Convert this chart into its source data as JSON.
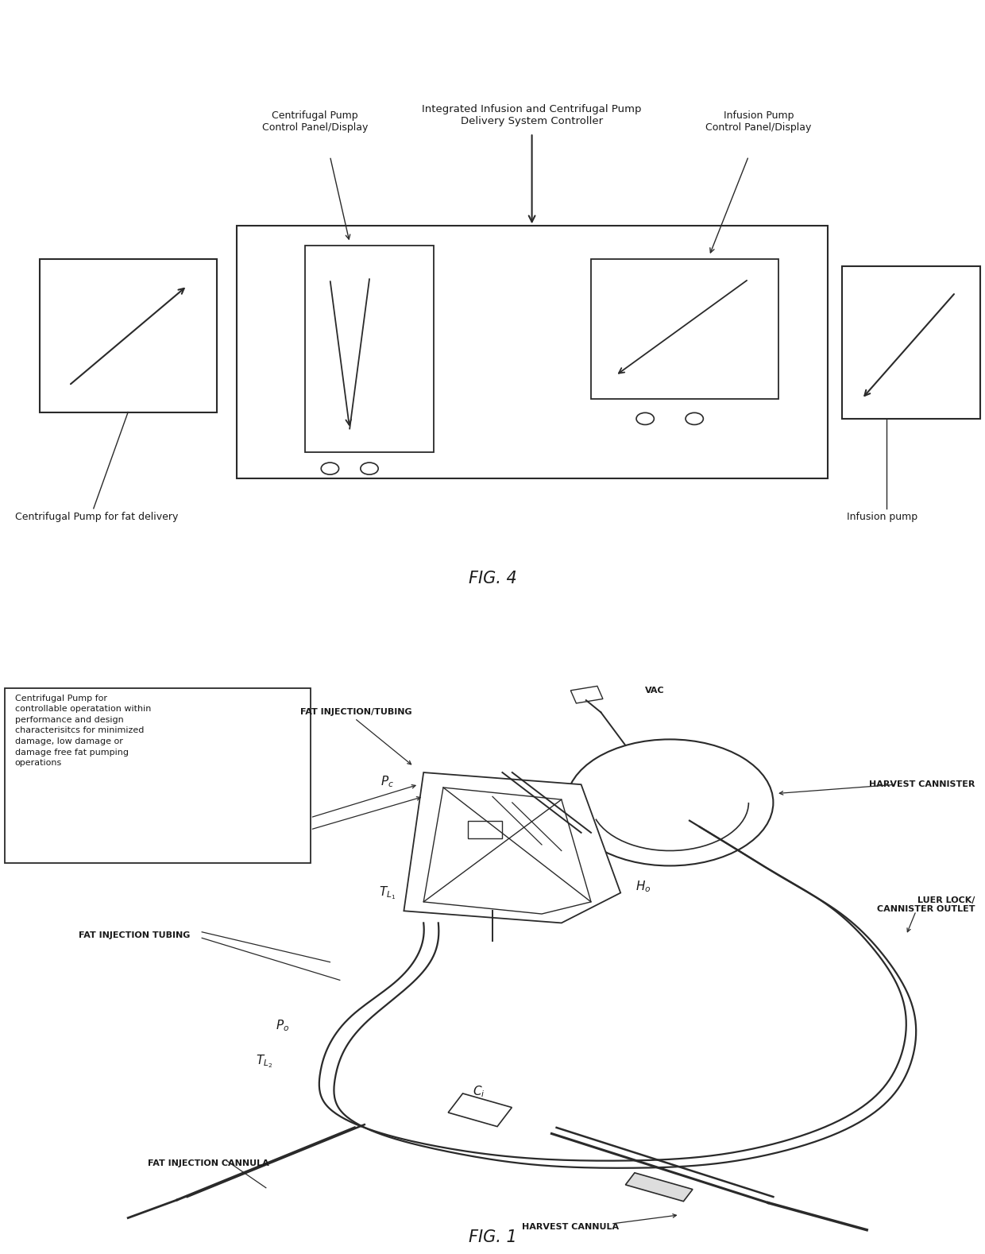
{
  "fig_width": 12.4,
  "fig_height": 15.78,
  "bg_color": "#ffffff",
  "line_color": "#2a2a2a",
  "text_color": "#1a1a1a",
  "fig4": {
    "title": "FIG. 4",
    "label_top": "Integrated Infusion and Centrifugal Pump\nDelivery System Controller",
    "label_cent_panel": "Centrifugal Pump\nControl Panel/Display",
    "label_inf_panel": "Infusion Pump\nControl Panel/Display",
    "label_cent_pump": "Centrifugal Pump for fat delivery",
    "label_inf_pump": "Infusion pump"
  },
  "fig1": {
    "title": "FIG. 1",
    "label_vac": "VAC",
    "label_harvest_can": "HARVEST CANNISTER",
    "label_luer": "LUER LOCK/\nCANNISTER OUTLET",
    "label_fat_inj_tub": "FAT INJECTION/TUBING",
    "label_fat_inj_tubing": "FAT INJECTION TUBING",
    "label_fat_inj_can": "FAT INJECTION CANNULA",
    "label_harvest_can2": "HARVEST CANNULA",
    "label_box": "Centrifugal Pump for\ncontrollable operatation within\nperformance and design\ncharacterisitcs for minimized\ndamage, low damage or\ndamage free fat pumping\noperations"
  }
}
